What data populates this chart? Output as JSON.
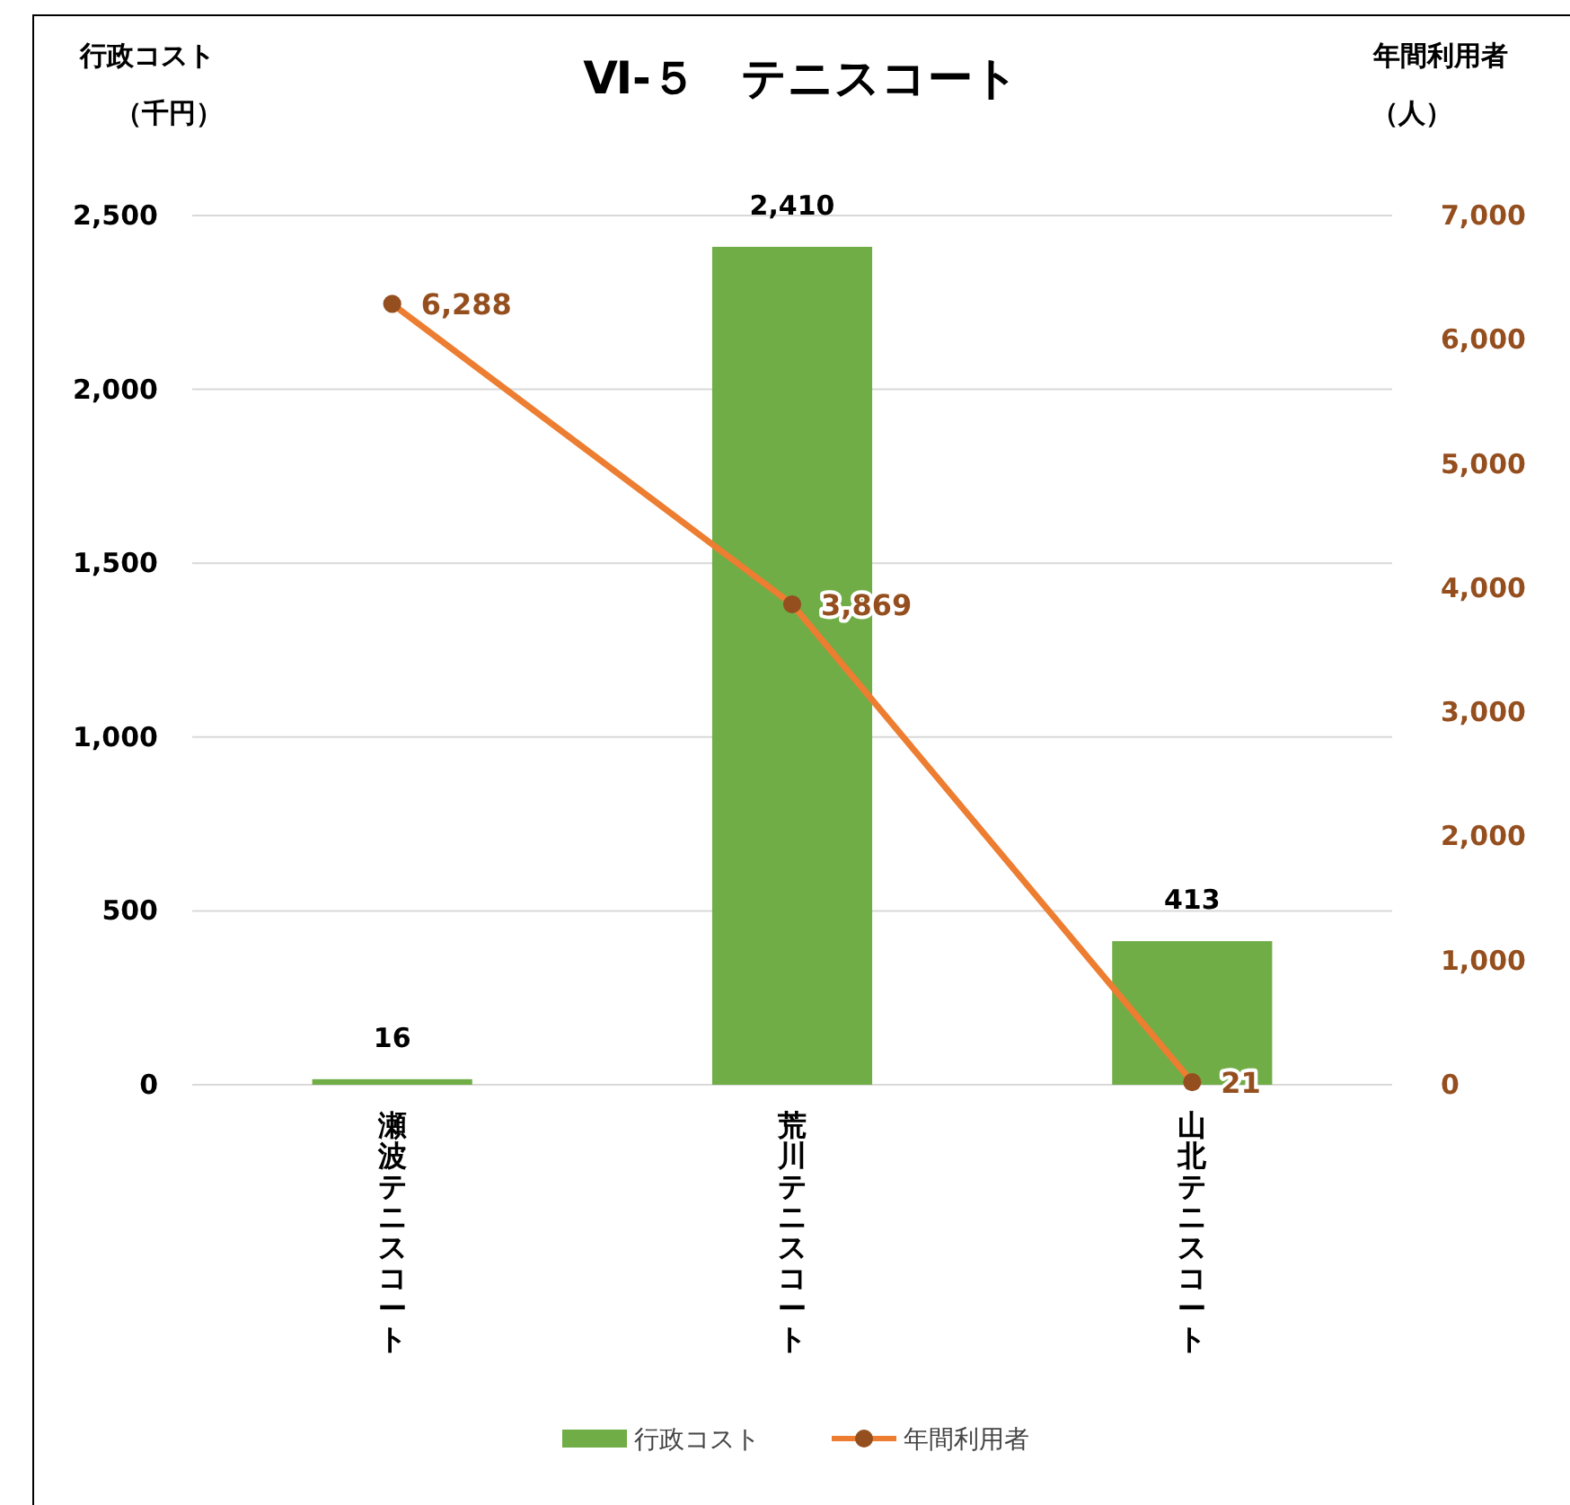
{
  "chart_data": {
    "type": "bar",
    "title": "Ⅵ-５　テニスコート",
    "ylabel": "行政コスト（千円）",
    "y2label": "年間利用者（人）",
    "categories": [
      "瀬波テニスコート",
      "荒川テニスコート",
      "山北テニスコート"
    ],
    "series": [
      {
        "name": "行政コスト",
        "color": "#70ad47",
        "values": [
          16,
          2410,
          413
        ],
        "value_labels": [
          "16",
          "2,410",
          "413"
        ]
      },
      {
        "name": "年間利用者",
        "type": "line",
        "axis": "y2",
        "color": "#ed7d31",
        "values": [
          6288,
          3869,
          21
        ],
        "value_labels": [
          "6,288",
          "3,869",
          "21"
        ]
      }
    ],
    "ylim": [
      0,
      2500
    ],
    "yticks": [
      0,
      {
        "value": 500,
        "label": "500"
      },
      {
        "value": 1000,
        "label": "1,000"
      },
      {
        "value": 1500,
        "label": "1,500"
      },
      {
        "value": 2000,
        "label": "2,000"
      },
      {
        "value": 2500,
        "label": "2,500"
      }
    ],
    "y2lim": [
      0,
      7000
    ],
    "y2ticks": [
      0,
      {
        "value": 1000,
        "label": "1,000"
      },
      {
        "value": 2000,
        "label": "2,000"
      },
      {
        "value": 3000,
        "label": "3,000"
      },
      {
        "value": 4000,
        "label": "4,000"
      },
      {
        "value": 5000,
        "label": "5,000"
      },
      {
        "value": 6000,
        "label": "6,000"
      },
      {
        "value": 7000,
        "label": "7,000"
      }
    ],
    "grid": "y",
    "legend": "bottom",
    "marker": "circle",
    "line_style": "solid"
  }
}
